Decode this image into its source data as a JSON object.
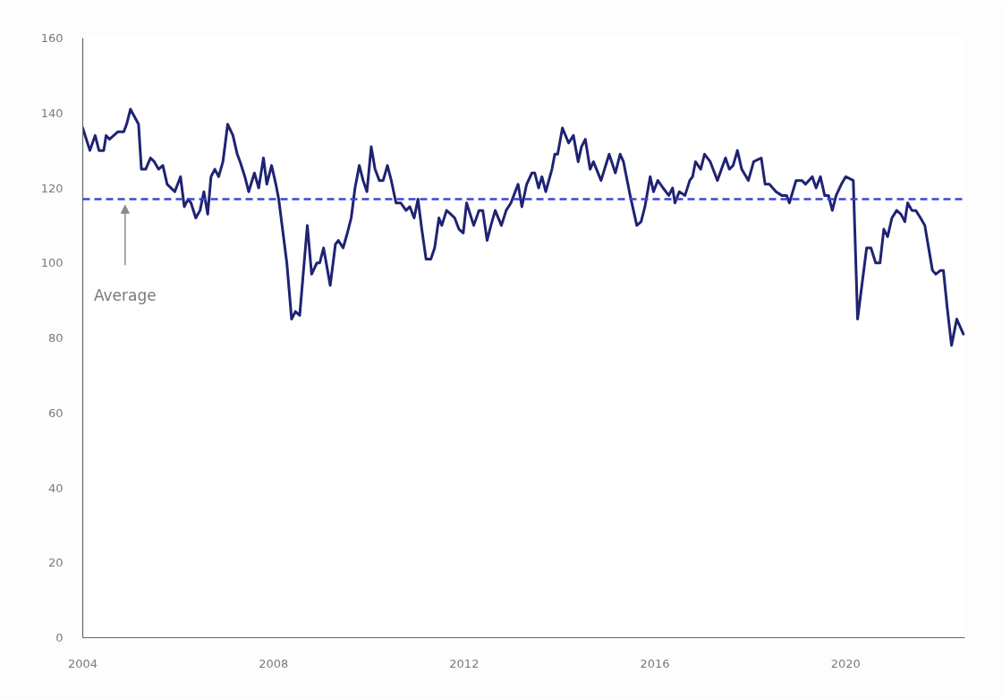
{
  "chart_data": {
    "type": "line",
    "x": [
      2004.0,
      2004.15,
      2004.26,
      2004.34,
      2004.44,
      2004.49,
      2004.56,
      2004.74,
      2004.86,
      2004.92,
      2005.0,
      2005.17,
      2005.23,
      2005.32,
      2005.42,
      2005.5,
      2005.59,
      2005.68,
      2005.77,
      2005.93,
      2006.05,
      2006.13,
      2006.21,
      2006.27,
      2006.37,
      2006.46,
      2006.54,
      2006.62,
      2006.69,
      2006.77,
      2006.85,
      2006.94,
      2007.04,
      2007.15,
      2007.24,
      2007.3,
      2007.4,
      2007.48,
      2007.6,
      2007.69,
      2007.79,
      2007.86,
      2007.96,
      2008.05,
      2008.11,
      2008.18,
      2008.28,
      2008.38,
      2008.46,
      2008.55,
      2008.71,
      2008.8,
      2008.91,
      2008.97,
      2009.05,
      2009.19,
      2009.3,
      2009.36,
      2009.46,
      2009.55,
      2009.63,
      2009.71,
      2009.8,
      2009.88,
      2009.96,
      2010.05,
      2010.13,
      2010.22,
      2010.3,
      2010.39,
      2010.47,
      2010.57,
      2010.67,
      2010.78,
      2010.86,
      2010.95,
      2011.03,
      2011.11,
      2011.2,
      2011.3,
      2011.38,
      2011.47,
      2011.53,
      2011.63,
      2011.72,
      2011.8,
      2011.89,
      2011.98,
      2012.05,
      2012.2,
      2012.31,
      2012.39,
      2012.48,
      2012.56,
      2012.65,
      2012.78,
      2012.88,
      2012.98,
      2013.13,
      2013.21,
      2013.31,
      2013.42,
      2013.48,
      2013.56,
      2013.63,
      2013.71,
      2013.84,
      2013.9,
      2013.96,
      2014.06,
      2014.19,
      2014.29,
      2014.39,
      2014.46,
      2014.54,
      2014.64,
      2014.71,
      2014.87,
      2015.04,
      2015.17,
      2015.27,
      2015.34,
      2015.48,
      2015.62,
      2015.71,
      2015.79,
      2015.9,
      2015.97,
      2016.06,
      2016.17,
      2016.29,
      2016.37,
      2016.42,
      2016.51,
      2016.63,
      2016.73,
      2016.79,
      2016.85,
      2016.96,
      2017.04,
      2017.16,
      2017.31,
      2017.48,
      2017.56,
      2017.64,
      2017.73,
      2017.82,
      2017.96,
      2018.07,
      2018.23,
      2018.31,
      2018.4,
      2018.54,
      2018.66,
      2018.76,
      2018.82,
      2018.96,
      2019.08,
      2019.16,
      2019.3,
      2019.38,
      2019.47,
      2019.56,
      2019.64,
      2019.72,
      2019.8,
      2019.91,
      2020.0,
      2020.16,
      2020.25,
      2020.34,
      2020.44,
      2020.53,
      2020.63,
      2020.72,
      2020.8,
      2020.88,
      2020.97,
      2021.07,
      2021.16,
      2021.24,
      2021.3,
      2021.39,
      2021.47,
      2021.57,
      2021.66,
      2021.82,
      2021.89,
      2021.99,
      2022.05,
      2022.13,
      2022.22,
      2022.33,
      2022.47
    ],
    "series": [
      {
        "color": "#1f2372",
        "values": [
          136,
          130,
          134,
          130,
          130,
          134,
          133,
          135,
          135,
          137,
          141,
          137,
          125,
          125,
          128,
          127,
          125,
          126,
          121,
          119,
          123,
          115,
          117,
          116,
          112,
          114,
          119,
          113,
          123,
          125,
          123,
          127,
          137,
          134,
          129,
          127,
          123,
          119,
          124,
          120,
          128,
          121,
          126,
          121,
          117,
          110,
          100,
          85,
          87,
          86,
          110,
          97,
          100,
          100,
          104,
          94,
          105,
          106,
          104,
          108,
          112,
          120,
          126,
          122,
          119,
          131,
          125,
          122,
          122,
          126,
          122,
          116,
          116,
          114,
          115,
          112,
          117,
          109,
          101,
          101,
          104,
          112,
          110,
          114,
          113,
          112,
          109,
          108,
          116,
          110,
          114,
          114,
          106,
          110,
          114,
          110,
          114,
          116,
          121,
          115,
          121,
          124,
          124,
          120,
          123,
          119,
          125,
          129,
          129,
          136,
          132,
          134,
          127,
          131,
          133,
          125,
          127,
          122,
          129,
          124,
          129,
          127,
          118,
          110,
          111,
          115,
          123,
          119,
          122,
          120,
          118,
          120,
          116,
          119,
          118,
          122,
          123,
          127,
          125,
          129,
          127,
          122,
          128,
          125,
          126,
          130,
          125,
          122,
          127,
          128,
          121,
          121,
          119,
          118,
          118,
          116,
          122,
          122,
          121,
          123,
          120,
          123,
          118,
          118,
          114,
          118,
          121,
          123,
          122,
          85,
          94,
          104,
          104,
          100,
          100,
          109,
          107,
          112,
          114,
          113,
          111,
          116,
          114,
          114,
          112,
          110,
          98,
          97,
          98,
          98,
          88,
          78,
          85,
          81
        ]
      }
    ],
    "xlim": [
      2004,
      2022.5
    ],
    "xticks": [
      2004,
      2008,
      2012,
      2016,
      2020
    ],
    "ylim": [
      0,
      160
    ],
    "yticks": [
      0,
      20,
      40,
      60,
      80,
      100,
      120,
      140,
      160
    ],
    "ref_lines": [
      {
        "axis": "y",
        "value": 117,
        "color": "#3f44d8",
        "line_style": "dashed"
      }
    ],
    "annotations": [
      "Average"
    ],
    "line_style": "solid"
  }
}
